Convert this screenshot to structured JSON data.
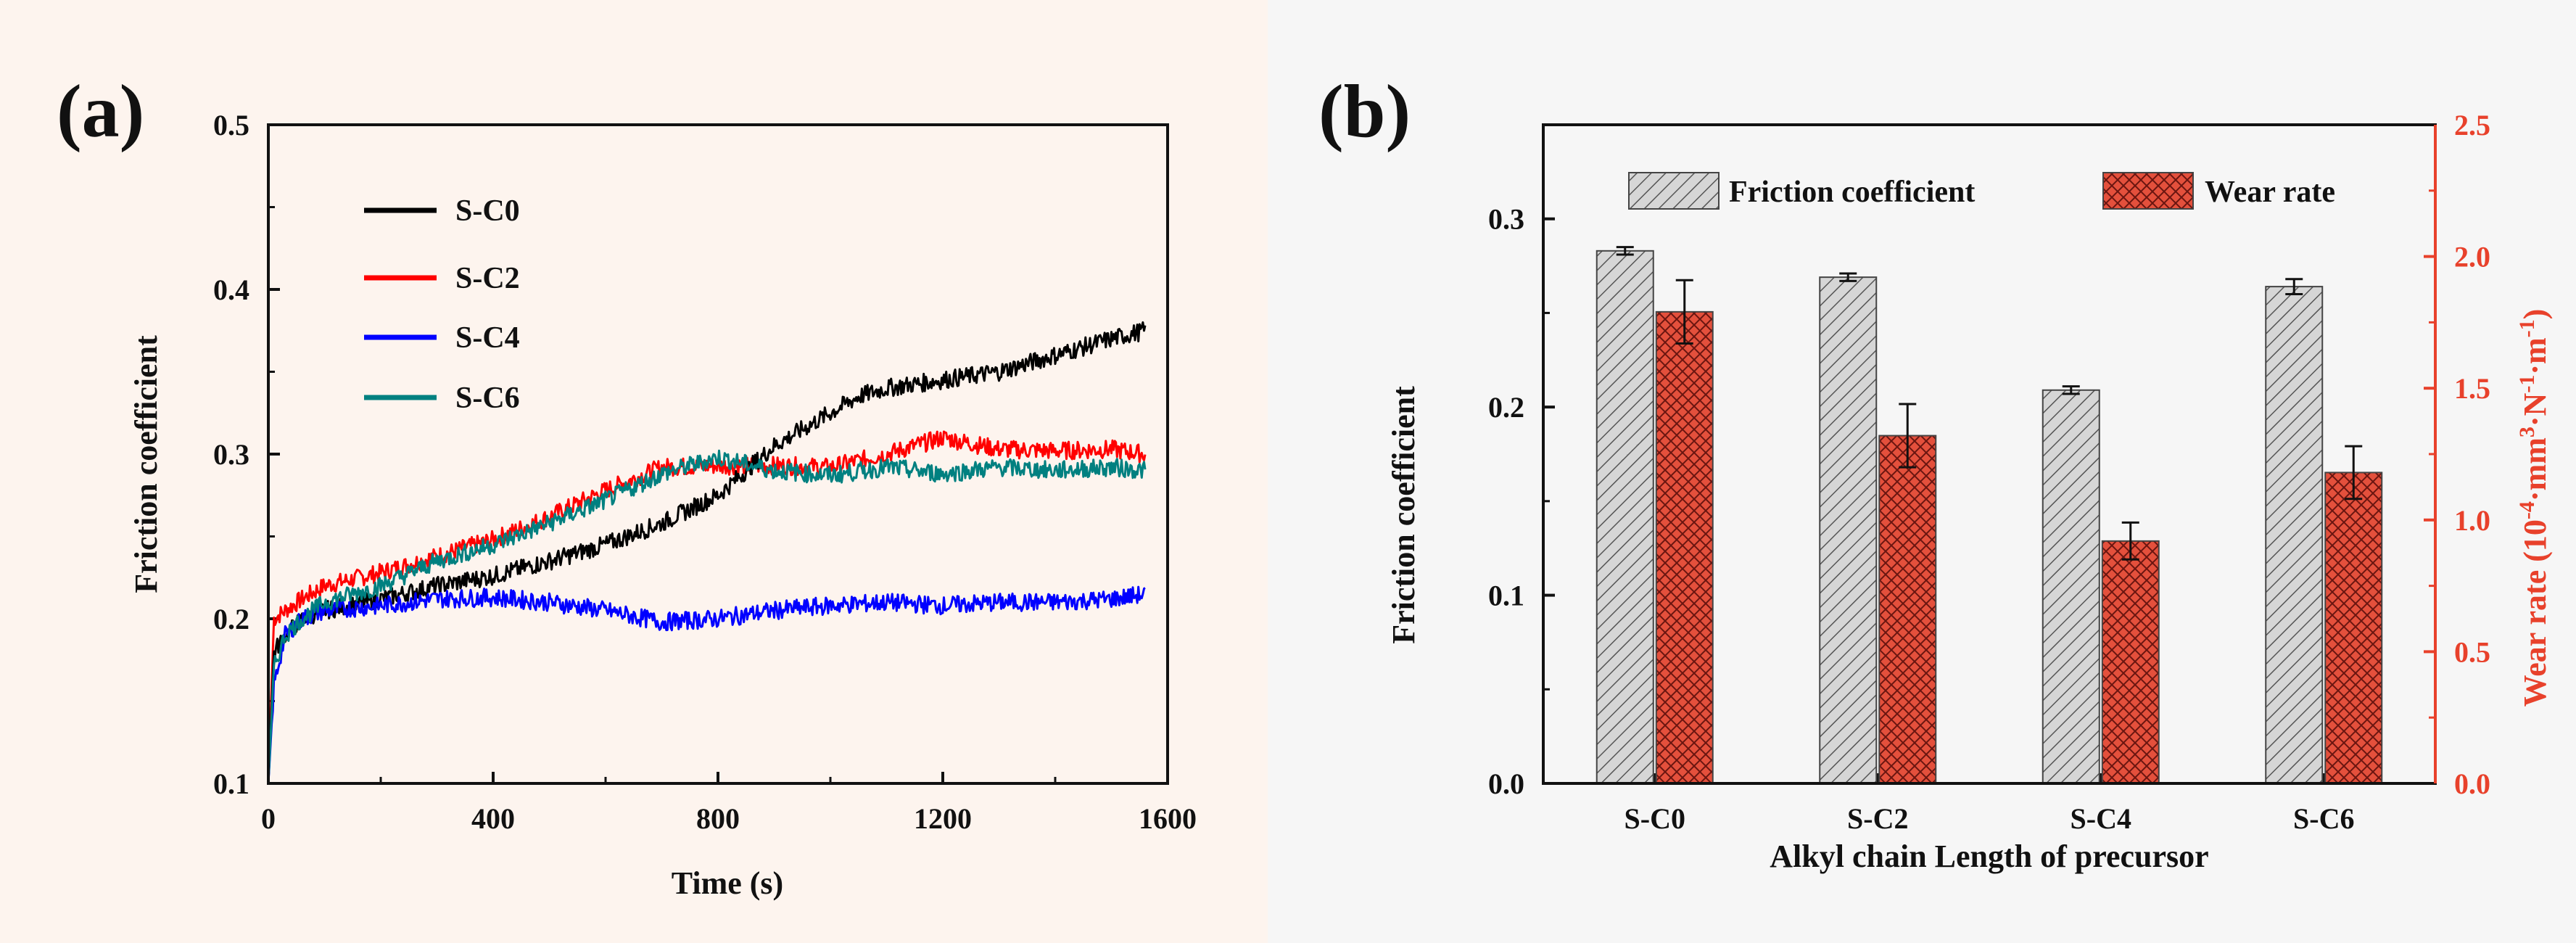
{
  "chart_data": [
    {
      "panel_label": "(a)",
      "type": "line",
      "title": "",
      "xlabel": "Time (s)",
      "ylabel": "Friction coefficient",
      "xlim": [
        0,
        1600
      ],
      "ylim": [
        0.1,
        0.5
      ],
      "xticks": [
        "0",
        "400",
        "800",
        "1200",
        "1600"
      ],
      "yticks": [
        "0.1",
        "0.2",
        "0.3",
        "0.4",
        "0.5"
      ],
      "legend_position": "top-left",
      "series": [
        {
          "name": "S-C0",
          "color": "#000000",
          "x": [
            0,
            10,
            30,
            60,
            100,
            200,
            300,
            400,
            500,
            600,
            700,
            800,
            850,
            900,
            1000,
            1050,
            1100,
            1200,
            1300,
            1400,
            1500,
            1560
          ],
          "y": [
            0.1,
            0.18,
            0.19,
            0.2,
            0.205,
            0.212,
            0.22,
            0.226,
            0.235,
            0.245,
            0.258,
            0.275,
            0.29,
            0.305,
            0.325,
            0.335,
            0.34,
            0.345,
            0.35,
            0.36,
            0.37,
            0.375
          ]
        },
        {
          "name": "S-C2",
          "color": "#ff0000",
          "x": [
            0,
            10,
            30,
            60,
            100,
            200,
            300,
            400,
            500,
            600,
            700,
            800,
            900,
            1000,
            1100,
            1200,
            1300,
            1400,
            1500,
            1560
          ],
          "y": [
            0.1,
            0.2,
            0.205,
            0.212,
            0.22,
            0.228,
            0.238,
            0.248,
            0.262,
            0.278,
            0.292,
            0.293,
            0.293,
            0.292,
            0.3,
            0.31,
            0.303,
            0.302,
            0.303,
            0.3
          ]
        },
        {
          "name": "S-C4",
          "color": "#0000ff",
          "x": [
            0,
            10,
            30,
            60,
            100,
            200,
            300,
            400,
            500,
            600,
            700,
            800,
            900,
            1000,
            1100,
            1200,
            1300,
            1400,
            1500,
            1560
          ],
          "y": [
            0.1,
            0.16,
            0.19,
            0.2,
            0.205,
            0.208,
            0.212,
            0.213,
            0.21,
            0.205,
            0.198,
            0.2,
            0.205,
            0.208,
            0.21,
            0.208,
            0.21,
            0.21,
            0.212,
            0.215
          ]
        },
        {
          "name": "S-C6",
          "color": "#008080",
          "x": [
            0,
            10,
            30,
            60,
            100,
            200,
            300,
            400,
            500,
            600,
            700,
            800,
            900,
            1000,
            1100,
            1200,
            1300,
            1400,
            1500,
            1560
          ],
          "y": [
            0.1,
            0.17,
            0.19,
            0.2,
            0.21,
            0.22,
            0.235,
            0.245,
            0.258,
            0.272,
            0.288,
            0.298,
            0.29,
            0.287,
            0.292,
            0.288,
            0.292,
            0.29,
            0.292,
            0.29
          ]
        }
      ]
    },
    {
      "panel_label": "(b)",
      "type": "bar",
      "title": "",
      "xlabel": "Alkyl chain Length of precursor",
      "ylabel": "Friction coefficient",
      "y2label_main": "Wear rate (10",
      "y2label_exp1": "-4",
      "y2label_mid1": "·mm",
      "y2label_exp2": "3",
      "y2label_mid2": "·N",
      "y2label_exp3": "-1",
      "y2label_mid3": "·m",
      "y2label_exp4": "-1",
      "y2label_end": ")",
      "categories": [
        "S-C0",
        "S-C2",
        "S-C4",
        "S-C6"
      ],
      "ylim": [
        0.0,
        0.35
      ],
      "y2lim": [
        0.0,
        2.5
      ],
      "yticks": [
        "0.0",
        "0.1",
        "0.2",
        "0.3"
      ],
      "y2ticks": [
        "0.0",
        "0.5",
        "1.0",
        "1.5",
        "2.0",
        "2.5"
      ],
      "legend_position": "top",
      "series": [
        {
          "name": "Friction coefficient",
          "axis": "left",
          "color": "#c8c8c8",
          "values": [
            0.283,
            0.269,
            0.209,
            0.264
          ],
          "errors": [
            0.002,
            0.002,
            0.002,
            0.004
          ]
        },
        {
          "name": "Wear rate",
          "axis": "right",
          "color": "#e04030",
          "values": [
            1.79,
            1.32,
            0.92,
            1.18
          ],
          "errors": [
            0.12,
            0.12,
            0.07,
            0.1
          ]
        }
      ]
    }
  ]
}
